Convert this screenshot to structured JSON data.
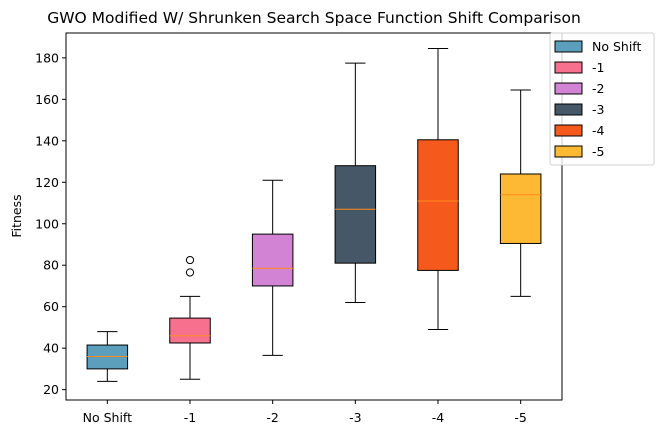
{
  "chart_data": {
    "type": "box",
    "title": "GWO Modified W/ Shrunken Search Space Function Shift Comparison",
    "xlabel": "",
    "ylabel": "Fitness",
    "ylim": [
      15,
      192
    ],
    "yticks": [
      20,
      40,
      60,
      80,
      100,
      120,
      140,
      160,
      180
    ],
    "categories": [
      "No Shift",
      "-1",
      "-2",
      "-3",
      "-4",
      "-5"
    ],
    "legend_position": "upper-right-outside",
    "series": [
      {
        "name": "No Shift",
        "color": "#5b9fbd",
        "whisker_low": 24,
        "q1": 30,
        "median": 36,
        "q3": 41.5,
        "whisker_high": 48,
        "outliers": []
      },
      {
        "name": "-1",
        "color": "#f7718e",
        "whisker_low": 25,
        "q1": 42.5,
        "median": 46,
        "q3": 54.5,
        "whisker_high": 65,
        "outliers": [
          76.5,
          82.5
        ]
      },
      {
        "name": "-2",
        "color": "#d383d4",
        "whisker_low": 36.5,
        "q1": 70,
        "median": 78.5,
        "q3": 95,
        "whisker_high": 121,
        "outliers": []
      },
      {
        "name": "-3",
        "color": "#465867",
        "whisker_low": 62,
        "q1": 81,
        "median": 107,
        "q3": 128,
        "whisker_high": 177.5,
        "outliers": []
      },
      {
        "name": "-4",
        "color": "#f55a1c",
        "whisker_low": 49,
        "q1": 77.5,
        "median": 111,
        "q3": 140.5,
        "whisker_high": 184.5,
        "outliers": []
      },
      {
        "name": "-5",
        "color": "#fdb933",
        "whisker_low": 65,
        "q1": 90.5,
        "median": 114,
        "q3": 124,
        "whisker_high": 164.5,
        "outliers": []
      }
    ],
    "median_color": "#ff8c1a"
  }
}
